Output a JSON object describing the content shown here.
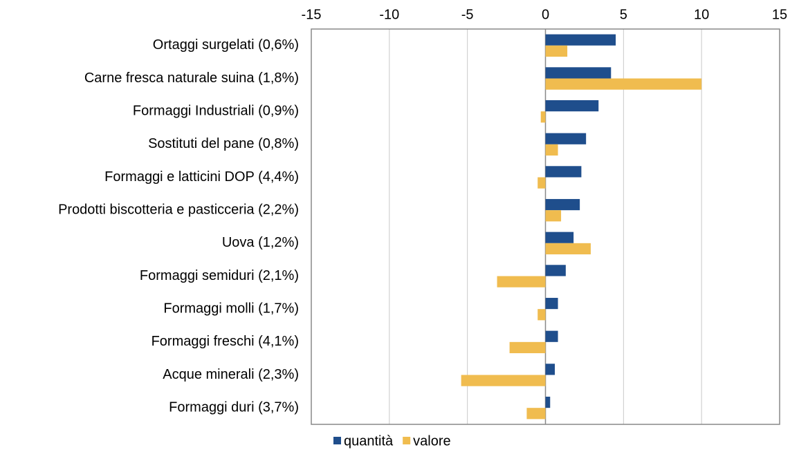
{
  "chart_data": {
    "type": "hbar",
    "categories": [
      "Ortaggi surgelati (0,6%)",
      "Carne fresca naturale suina (1,8%)",
      "Formaggi Industriali (0,9%)",
      "Sostituti del pane (0,8%)",
      "Formaggi e latticini DOP (4,4%)",
      "Prodotti biscotteria e pasticceria (2,2%)",
      "Uova (1,2%)",
      "Formaggi semiduri (2,1%)",
      "Formaggi molli (1,7%)",
      "Formaggi freschi (4,1%)",
      "Acque minerali (2,3%)",
      "Formaggi duri (3,7%)"
    ],
    "series": [
      {
        "name": "quantità",
        "color": "#1f4e8c",
        "values": [
          4.5,
          4.2,
          3.4,
          2.6,
          2.3,
          2.2,
          1.8,
          1.3,
          0.8,
          0.8,
          0.6,
          0.3
        ]
      },
      {
        "name": "valore",
        "color": "#f0bc4f",
        "values": [
          1.4,
          10.0,
          -0.3,
          0.8,
          -0.5,
          1.0,
          2.9,
          -3.1,
          -0.5,
          -2.3,
          -5.4,
          -1.2
        ]
      }
    ],
    "xlim": [
      -15,
      15
    ],
    "xticks": [
      -15,
      -10,
      -5,
      0,
      5,
      10,
      15
    ],
    "grid": true,
    "legend": "bottom"
  }
}
